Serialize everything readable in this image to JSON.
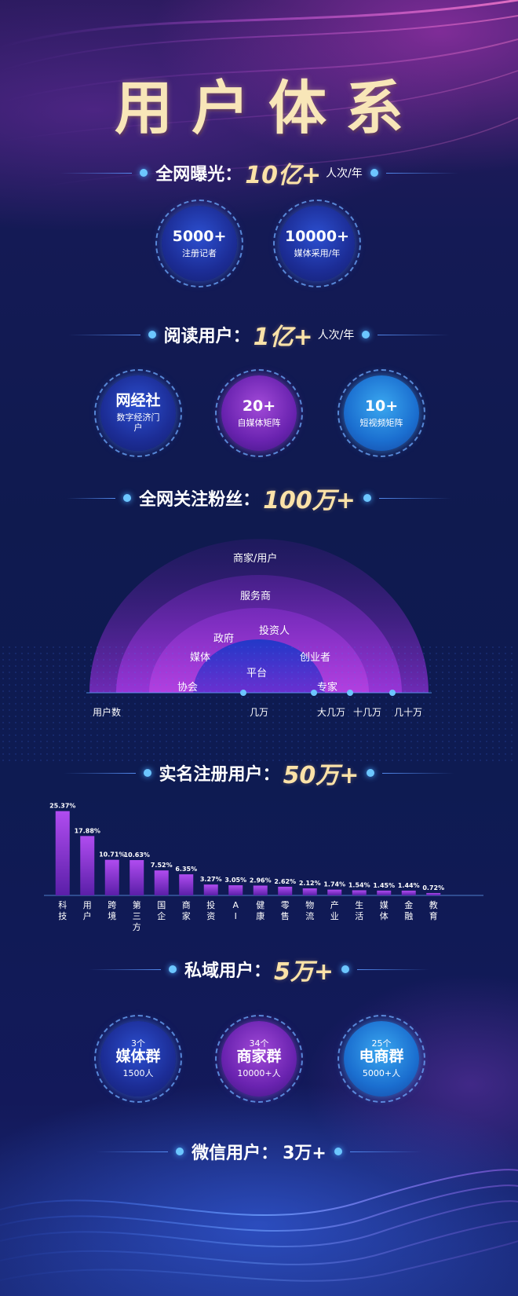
{
  "title": "用户体系",
  "exposure": {
    "label": "全网曝光：",
    "value": "10亿+",
    "unit": "人次/年"
  },
  "exposure_circles": [
    {
      "main": "5000+",
      "sub": "注册记者"
    },
    {
      "main": "10000+",
      "sub": "媒体采用/年"
    }
  ],
  "readers": {
    "label": "阅读用户：",
    "value": "1亿+",
    "unit": "人次/年"
  },
  "reader_circles": [
    {
      "main": "网经社",
      "sub": "数字经济门户"
    },
    {
      "main": "20+",
      "sub": "自媒体矩阵"
    },
    {
      "main": "10+",
      "sub": "短视频矩阵"
    }
  ],
  "followers": {
    "label": "全网关注粉丝：",
    "value": "100万+"
  },
  "fan_chart": {
    "layers": [
      "平台",
      "政府",
      "媒体",
      "协会",
      "投资人",
      "创业者",
      "专家",
      "服务商",
      "商家/用户"
    ],
    "axis": [
      "用户数",
      "几万",
      "大几万",
      "十几万",
      "几十万"
    ]
  },
  "registered": {
    "label": "实名注册用户：",
    "value": "50万+"
  },
  "chart_data": {
    "type": "bar",
    "categories": [
      "科技",
      "用户",
      "跨境",
      "第三方",
      "国企",
      "商家",
      "投资",
      "AI",
      "健康",
      "零售",
      "物流",
      "产业",
      "生活",
      "媒体",
      "金融",
      "教育"
    ],
    "values": [
      25.37,
      17.88,
      10.71,
      10.63,
      7.52,
      6.35,
      3.27,
      3.05,
      2.96,
      2.62,
      2.12,
      1.74,
      1.54,
      1.45,
      1.44,
      0.72
    ],
    "value_labels": [
      "25.37%",
      "17.88%",
      "10.71%",
      "10.63%",
      "7.52%",
      "6.35%",
      "3.27%",
      "3.05%",
      "2.96%",
      "2.62%",
      "2.12%",
      "1.74%",
      "1.54%",
      "1.45%",
      "1.44%",
      "0.72%"
    ],
    "title": "",
    "xlabel": "",
    "ylabel": "",
    "ylim": [
      0,
      26
    ]
  },
  "private": {
    "label": "私域用户：",
    "value": "5万+"
  },
  "group_circles": [
    {
      "top": "3个",
      "main": "媒体群",
      "sub": "1500人"
    },
    {
      "top": "34个",
      "main": "商家群",
      "sub": "10000+人"
    },
    {
      "top": "25个",
      "main": "电商群",
      "sub": "5000+人"
    }
  ],
  "wechat": {
    "label": "微信用户：",
    "value": "3万+"
  },
  "colors": {
    "gold": "#fbe2a8",
    "accent_blue": "#6cc6ff",
    "bar": "#8a2fd0"
  }
}
